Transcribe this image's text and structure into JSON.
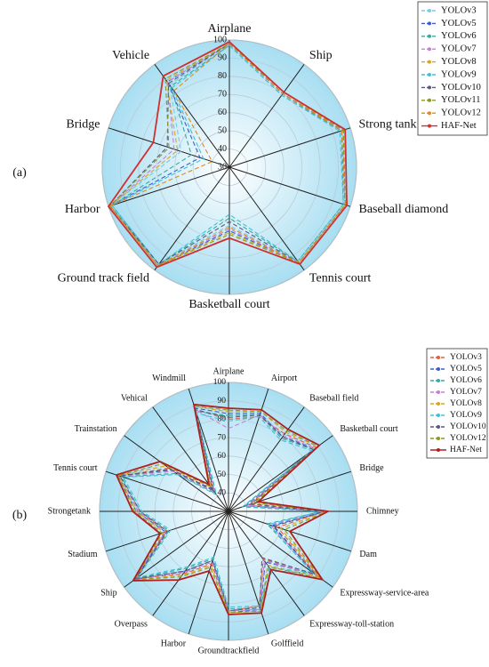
{
  "chart_data": [
    {
      "type": "radar",
      "label": "(a)",
      "categories": [
        "Airplane",
        "Ship",
        "Strong tank",
        "Baseball diamond",
        "Tennis court",
        "Basketball court",
        "Ground track field",
        "Harbor",
        "Bridge",
        "Vehicle"
      ],
      "ylim": [
        30,
        100
      ],
      "yticks": [
        30,
        40,
        50,
        60,
        70,
        80,
        90,
        100
      ],
      "grid": true,
      "legend": "upper right",
      "series": [
        {
          "name": "YOLOv3",
          "color": "#7ec8e3",
          "values": [
            98,
            80,
            95,
            97,
            95,
            62,
            96,
            99,
            58,
            86
          ]
        },
        {
          "name": "YOLOv5",
          "color": "#3a5fcd",
          "values": [
            98,
            80,
            96,
            97,
            95,
            65,
            97,
            99,
            47,
            88
          ]
        },
        {
          "name": "YOLOv6",
          "color": "#3aa8a0",
          "values": [
            97,
            79,
            95,
            96,
            94,
            58,
            96,
            98,
            52,
            85
          ]
        },
        {
          "name": "YOLOv7",
          "color": "#c77fd6",
          "values": [
            98,
            80,
            96,
            97,
            95,
            64,
            97,
            99,
            62,
            88
          ]
        },
        {
          "name": "YOLOv8",
          "color": "#d9a520",
          "values": [
            98,
            80,
            96,
            97,
            95,
            66,
            97,
            99,
            60,
            89
          ]
        },
        {
          "name": "YOLOv9",
          "color": "#40c0d8",
          "values": [
            97,
            79,
            94,
            96,
            94,
            56,
            96,
            98,
            45,
            84
          ]
        },
        {
          "name": "YOLOv10",
          "color": "#5a5a7a",
          "values": [
            98,
            80,
            95,
            97,
            95,
            60,
            96,
            99,
            66,
            87
          ]
        },
        {
          "name": "YOLOv11",
          "color": "#8a9a20",
          "values": [
            98,
            81,
            96,
            97,
            95,
            67,
            97,
            99,
            65,
            90
          ]
        },
        {
          "name": "YOLOv12",
          "color": "#e08a20",
          "values": [
            98,
            80,
            95,
            97,
            95,
            63,
            97,
            99,
            40,
            82
          ]
        },
        {
          "name": "HAF-Net",
          "color": "#d03030",
          "values": [
            99,
            81,
            97,
            98,
            96,
            69,
            98,
            100,
            74,
            92
          ]
        }
      ]
    },
    {
      "type": "radar",
      "label": "(b)",
      "categories": [
        "Airplane",
        "Airport",
        "Baseball field",
        "Basketball court",
        "Bridge",
        "Chimney",
        "Dam",
        "Expressway-service-area",
        "Expressway-toll-station",
        "Golffield",
        "Groundtrackfield",
        "Harbor",
        "Overpass",
        "Ship",
        "Stadium",
        "Strongetank",
        "Tennis court",
        "Trainstation",
        "Vehical",
        "Windmill"
      ],
      "ylim": [
        30,
        100
      ],
      "yticks": [
        40,
        50,
        60,
        70,
        80,
        90,
        100
      ],
      "grid": true,
      "legend": "upper right",
      "series": [
        {
          "name": "YOLOv3",
          "color": "#e0603a",
          "values": [
            80,
            84,
            82,
            89,
            42,
            82,
            58,
            90,
            62,
            84,
            84,
            60,
            72,
            92,
            65,
            79,
            92,
            70,
            44,
            88
          ]
        },
        {
          "name": "YOLOv5",
          "color": "#3a5fcd",
          "values": [
            83,
            86,
            80,
            88,
            40,
            83,
            55,
            88,
            64,
            86,
            85,
            58,
            70,
            93,
            66,
            80,
            93,
            68,
            45,
            89
          ]
        },
        {
          "name": "YOLOv6",
          "color": "#3aa8a0",
          "values": [
            82,
            85,
            79,
            87,
            38,
            81,
            52,
            87,
            70,
            85,
            83,
            57,
            68,
            92,
            64,
            78,
            91,
            65,
            42,
            87
          ]
        },
        {
          "name": "YOLOv7",
          "color": "#c77fd6",
          "values": [
            75,
            85,
            81,
            88,
            41,
            82,
            54,
            89,
            63,
            86,
            84,
            59,
            71,
            92,
            66,
            79,
            92,
            67,
            43,
            88
          ]
        },
        {
          "name": "YOLOv8",
          "color": "#d9a520",
          "values": [
            84,
            87,
            83,
            90,
            44,
            83,
            60,
            91,
            66,
            87,
            85,
            61,
            73,
            93,
            67,
            80,
            93,
            72,
            46,
            90
          ]
        },
        {
          "name": "YOLOv9",
          "color": "#40c0d8",
          "values": [
            79,
            84,
            78,
            86,
            39,
            80,
            53,
            86,
            68,
            84,
            82,
            56,
            67,
            91,
            63,
            77,
            90,
            64,
            41,
            86
          ]
        },
        {
          "name": "YOLOv10",
          "color": "#5a5a7a",
          "values": [
            81,
            85,
            80,
            87,
            43,
            82,
            56,
            88,
            61,
            85,
            84,
            58,
            70,
            92,
            65,
            78,
            92,
            69,
            44,
            88
          ]
        },
        {
          "name": "YOLOv12",
          "color": "#8a9a20",
          "values": [
            85,
            87,
            84,
            90,
            45,
            84,
            62,
            92,
            67,
            87,
            85,
            62,
            74,
            93,
            68,
            81,
            93,
            74,
            47,
            90
          ]
        },
        {
          "name": "HAF-Net",
          "color": "#b02020",
          "values": [
            86,
            88,
            85,
            91,
            47,
            84,
            65,
            93,
            69,
            88,
            86,
            64,
            76,
            94,
            69,
            82,
            94,
            76,
            48,
            91
          ]
        }
      ]
    }
  ]
}
